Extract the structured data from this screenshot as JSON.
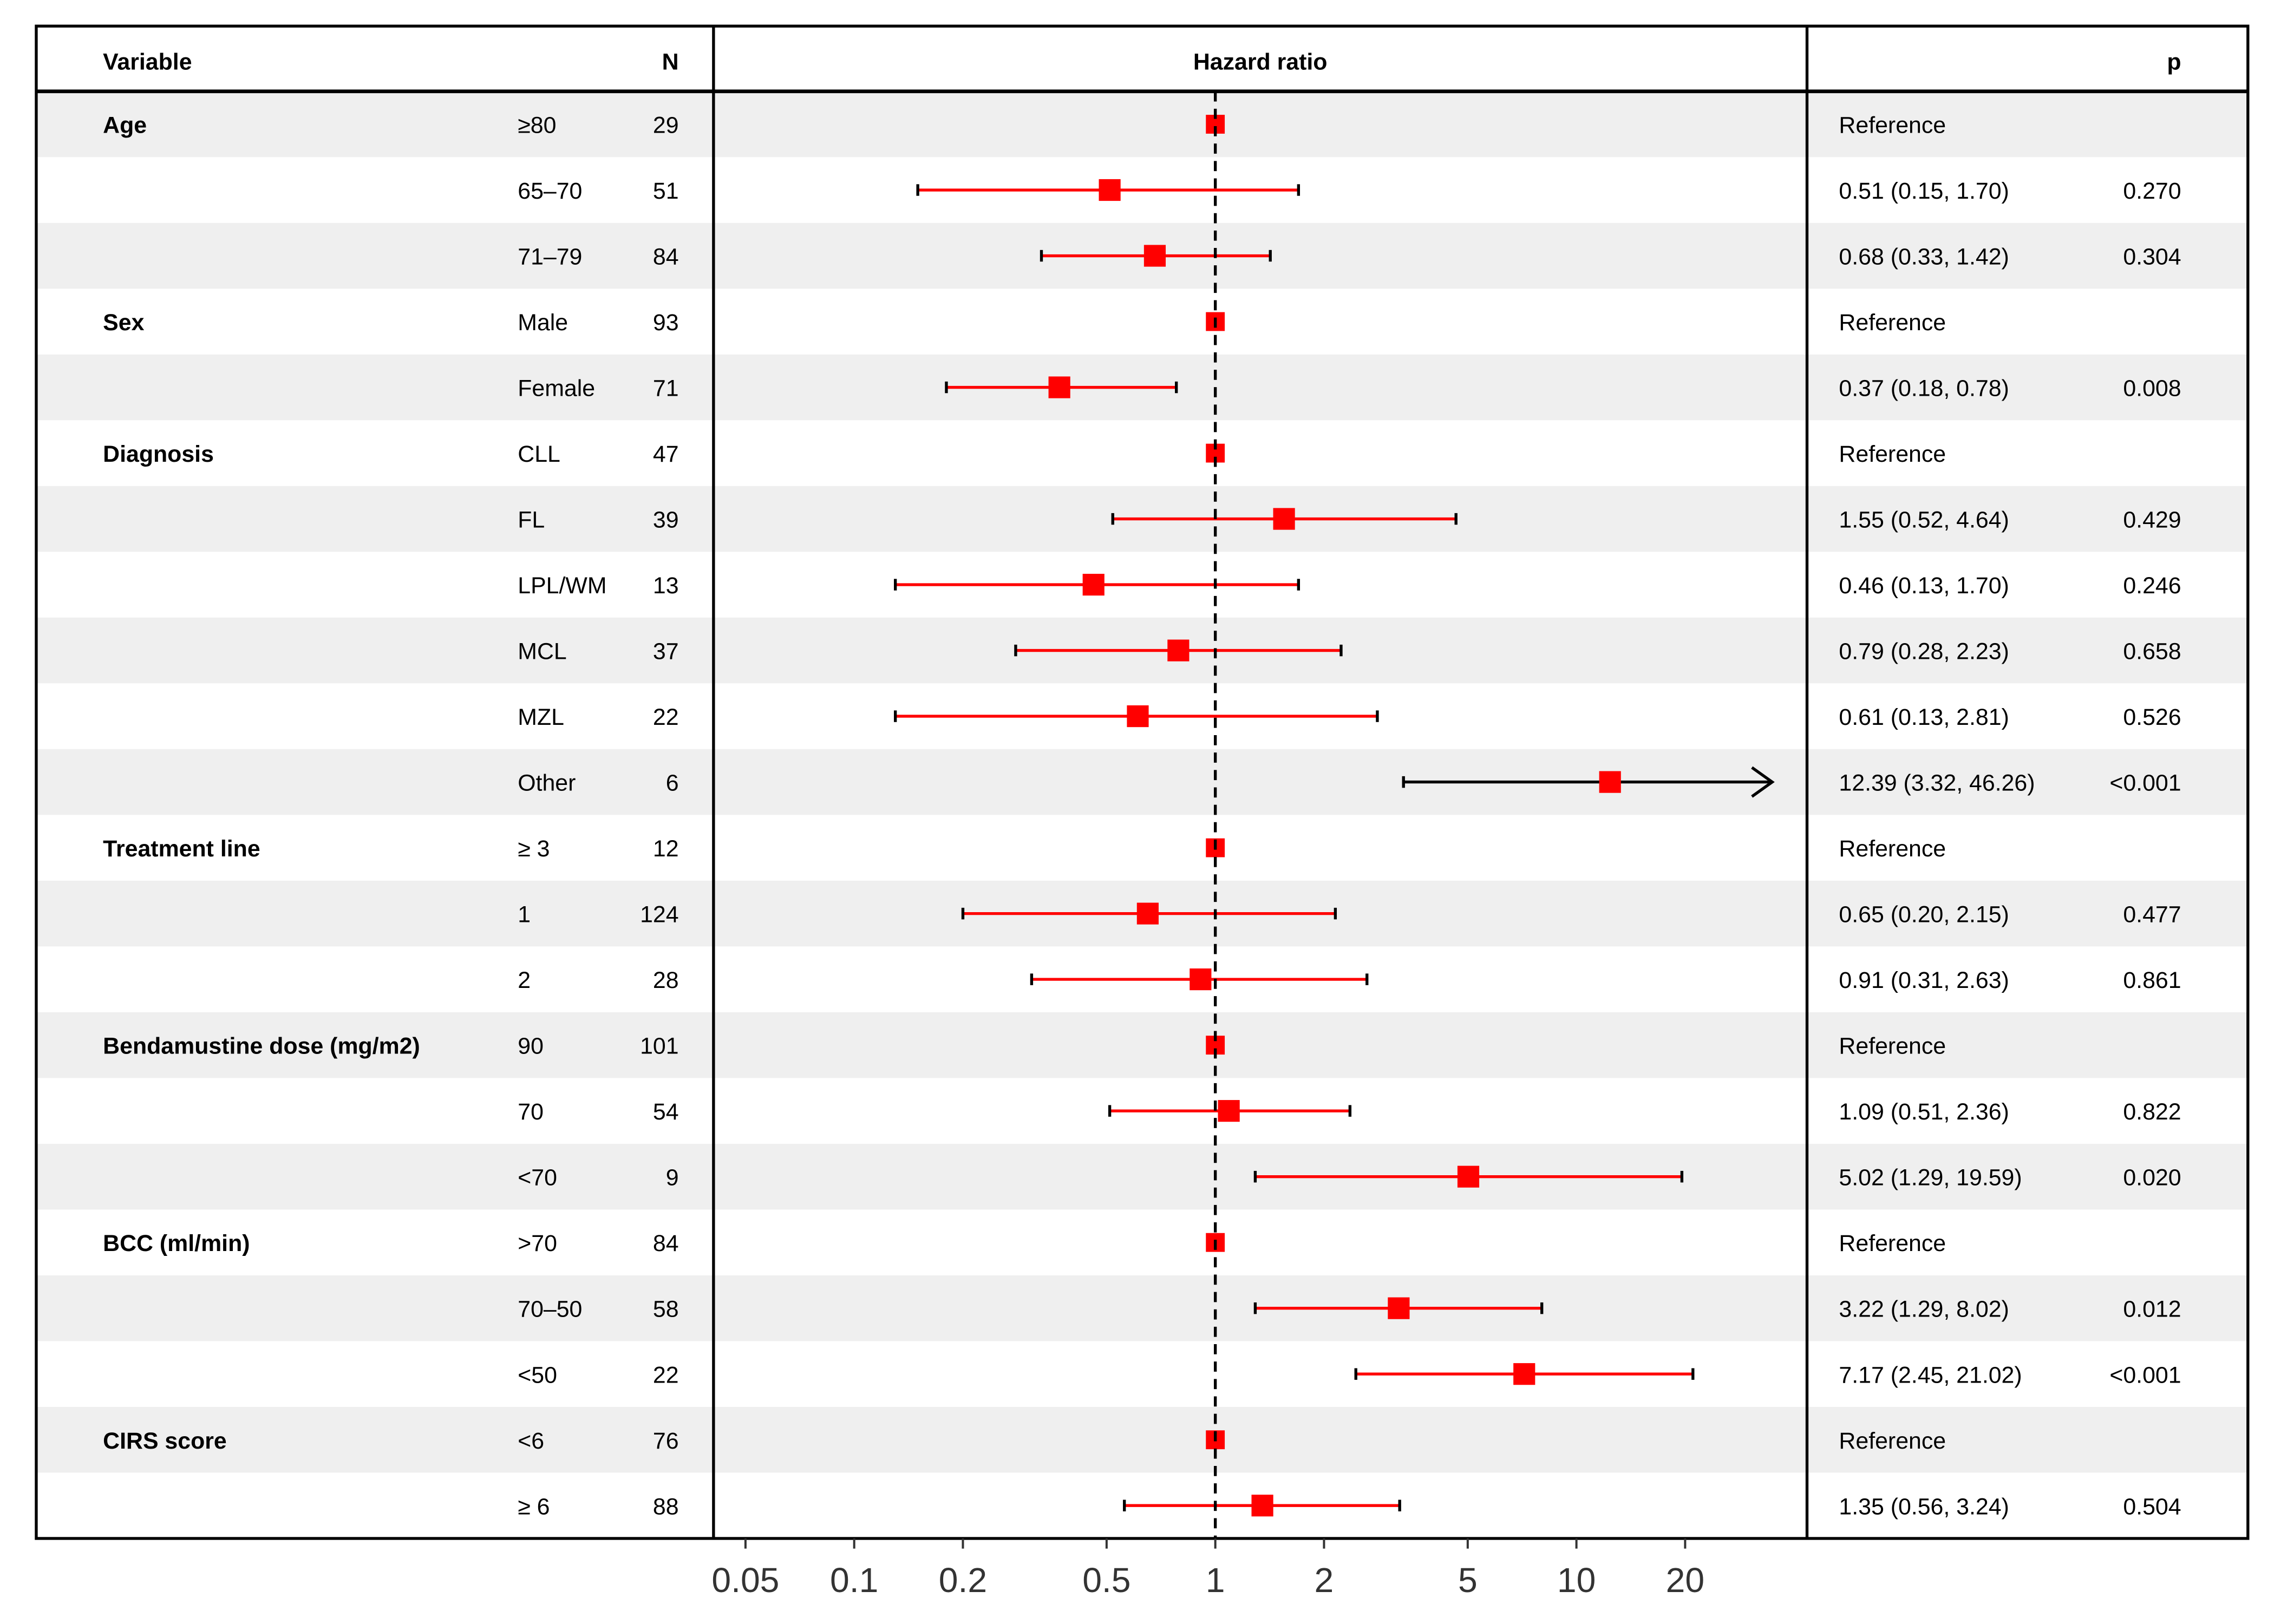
{
  "chart_data": {
    "type": "forest",
    "headers": {
      "variable": "Variable",
      "n": "N",
      "hr": "Hazard ratio",
      "p": "p"
    },
    "x_scale": "log",
    "xlim": [
      0.045,
      40
    ],
    "reference_line": 1,
    "x_ticks": [
      0.05,
      0.1,
      0.2,
      0.5,
      1,
      2,
      5,
      10,
      20
    ],
    "x_tick_labels": [
      "0.05",
      "0.1",
      "0.2",
      "0.5",
      "1",
      "2",
      "5",
      "10",
      "20"
    ],
    "colors": {
      "point": "#ff0000",
      "ci": "#ff0000",
      "overflow_ci": "#000000",
      "shade": "#efefef"
    },
    "rows": [
      {
        "group": "Age",
        "level": "≥80",
        "n": "29",
        "hr": 1,
        "lo": null,
        "hi": null,
        "est": "Reference",
        "p": ""
      },
      {
        "group": "",
        "level": "65–70",
        "n": "51",
        "hr": 0.51,
        "lo": 0.15,
        "hi": 1.7,
        "est": "0.51 (0.15, 1.70)",
        "p": "0.270"
      },
      {
        "group": "",
        "level": "71–79",
        "n": "84",
        "hr": 0.68,
        "lo": 0.33,
        "hi": 1.42,
        "est": "0.68 (0.33, 1.42)",
        "p": "0.304"
      },
      {
        "group": "Sex",
        "level": "Male",
        "n": "93",
        "hr": 1,
        "lo": null,
        "hi": null,
        "est": "Reference",
        "p": ""
      },
      {
        "group": "",
        "level": "Female",
        "n": "71",
        "hr": 0.37,
        "lo": 0.18,
        "hi": 0.78,
        "est": "0.37 (0.18, 0.78)",
        "p": "0.008"
      },
      {
        "group": "Diagnosis",
        "level": "CLL",
        "n": "47",
        "hr": 1,
        "lo": null,
        "hi": null,
        "est": "Reference",
        "p": ""
      },
      {
        "group": "",
        "level": "FL",
        "n": "39",
        "hr": 1.55,
        "lo": 0.52,
        "hi": 4.64,
        "est": "1.55 (0.52, 4.64)",
        "p": "0.429"
      },
      {
        "group": "",
        "level": "LPL/WM",
        "n": "13",
        "hr": 0.46,
        "lo": 0.13,
        "hi": 1.7,
        "est": "0.46 (0.13, 1.70)",
        "p": "0.246"
      },
      {
        "group": "",
        "level": "MCL",
        "n": "37",
        "hr": 0.79,
        "lo": 0.28,
        "hi": 2.23,
        "est": "0.79 (0.28, 2.23)",
        "p": "0.658"
      },
      {
        "group": "",
        "level": "MZL",
        "n": "22",
        "hr": 0.61,
        "lo": 0.13,
        "hi": 2.81,
        "est": "0.61 (0.13, 2.81)",
        "p": "0.526"
      },
      {
        "group": "",
        "level": "Other",
        "n": "6",
        "hr": 12.39,
        "lo": 3.32,
        "hi": 46.26,
        "est": "12.39 (3.32, 46.26)",
        "p": "<0.001"
      },
      {
        "group": "Treatment line",
        "level": "≥ 3",
        "n": "12",
        "hr": 1,
        "lo": null,
        "hi": null,
        "est": "Reference",
        "p": ""
      },
      {
        "group": "",
        "level": "1",
        "n": "124",
        "hr": 0.65,
        "lo": 0.2,
        "hi": 2.15,
        "est": "0.65 (0.20, 2.15)",
        "p": "0.477"
      },
      {
        "group": "",
        "level": "2",
        "n": "28",
        "hr": 0.91,
        "lo": 0.31,
        "hi": 2.63,
        "est": "0.91 (0.31, 2.63)",
        "p": "0.861"
      },
      {
        "group": "Bendamustine dose (mg/m2)",
        "level": "90",
        "n": "101",
        "hr": 1,
        "lo": null,
        "hi": null,
        "est": "Reference",
        "p": ""
      },
      {
        "group": "",
        "level": "70",
        "n": "54",
        "hr": 1.09,
        "lo": 0.51,
        "hi": 2.36,
        "est": "1.09 (0.51, 2.36)",
        "p": "0.822"
      },
      {
        "group": "",
        "level": "<70",
        "n": "9",
        "hr": 5.02,
        "lo": 1.29,
        "hi": 19.59,
        "est": "5.02 (1.29, 19.59)",
        "p": "0.020"
      },
      {
        "group": "BCC (ml/min)",
        "level": ">70",
        "n": "84",
        "hr": 1,
        "lo": null,
        "hi": null,
        "est": "Reference",
        "p": ""
      },
      {
        "group": "",
        "level": "70–50",
        "n": "58",
        "hr": 3.22,
        "lo": 1.29,
        "hi": 8.02,
        "est": "3.22 (1.29, 8.02)",
        "p": "0.012"
      },
      {
        "group": "",
        "level": "<50",
        "n": "22",
        "hr": 7.17,
        "lo": 2.45,
        "hi": 21.02,
        "est": "7.17 (2.45, 21.02)",
        "p": "<0.001"
      },
      {
        "group": "CIRS score",
        "level": "<6",
        "n": "76",
        "hr": 1,
        "lo": null,
        "hi": null,
        "est": "Reference",
        "p": ""
      },
      {
        "group": "",
        "level": "≥ 6",
        "n": "88",
        "hr": 1.35,
        "lo": 0.56,
        "hi": 3.24,
        "est": "1.35 (0.56, 3.24)",
        "p": "0.504"
      }
    ]
  }
}
